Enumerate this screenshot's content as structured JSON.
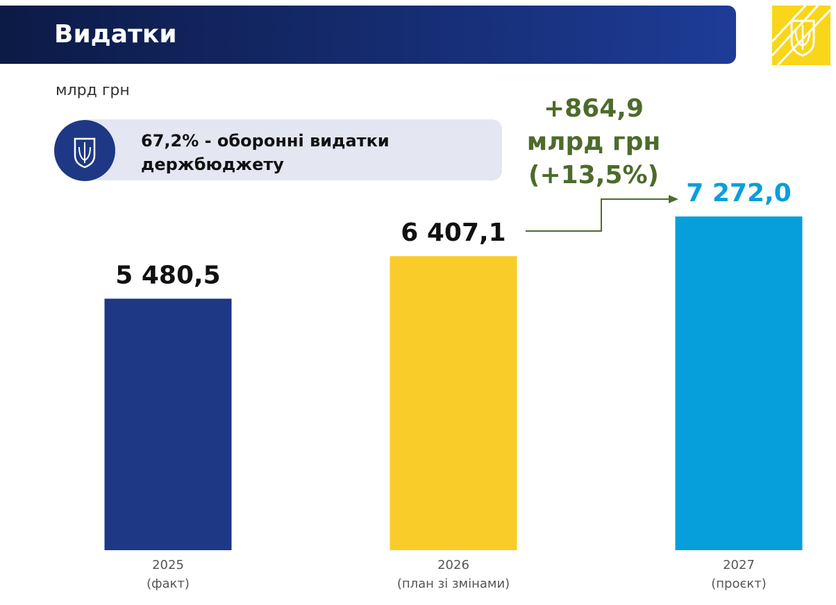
{
  "header": {
    "title": "Видатки"
  },
  "unit": "млрд грн",
  "callout": {
    "lines": [
      "67,2% - оборонні видатки",
      "держбюджету"
    ]
  },
  "chart_data": {
    "type": "bar",
    "categories": [
      "2025",
      "2026",
      "2027"
    ],
    "category_notes": [
      "(факт)",
      "(план зі змінами)",
      "(проєкт)"
    ],
    "values": [
      5480.5,
      6407.1,
      7272.0
    ],
    "value_labels": [
      "5 480,5",
      "6 407,1",
      "7 272,0"
    ],
    "colors": [
      "#1f3885",
      "#f9cc2a",
      "#069fdc"
    ],
    "value_label_colors": [
      "#111111",
      "#111111",
      "#069fdc"
    ],
    "annotation": {
      "lines": [
        "+864,9",
        "млрд грн",
        "(+13,5%)"
      ],
      "color": "#4d6b2b"
    }
  }
}
